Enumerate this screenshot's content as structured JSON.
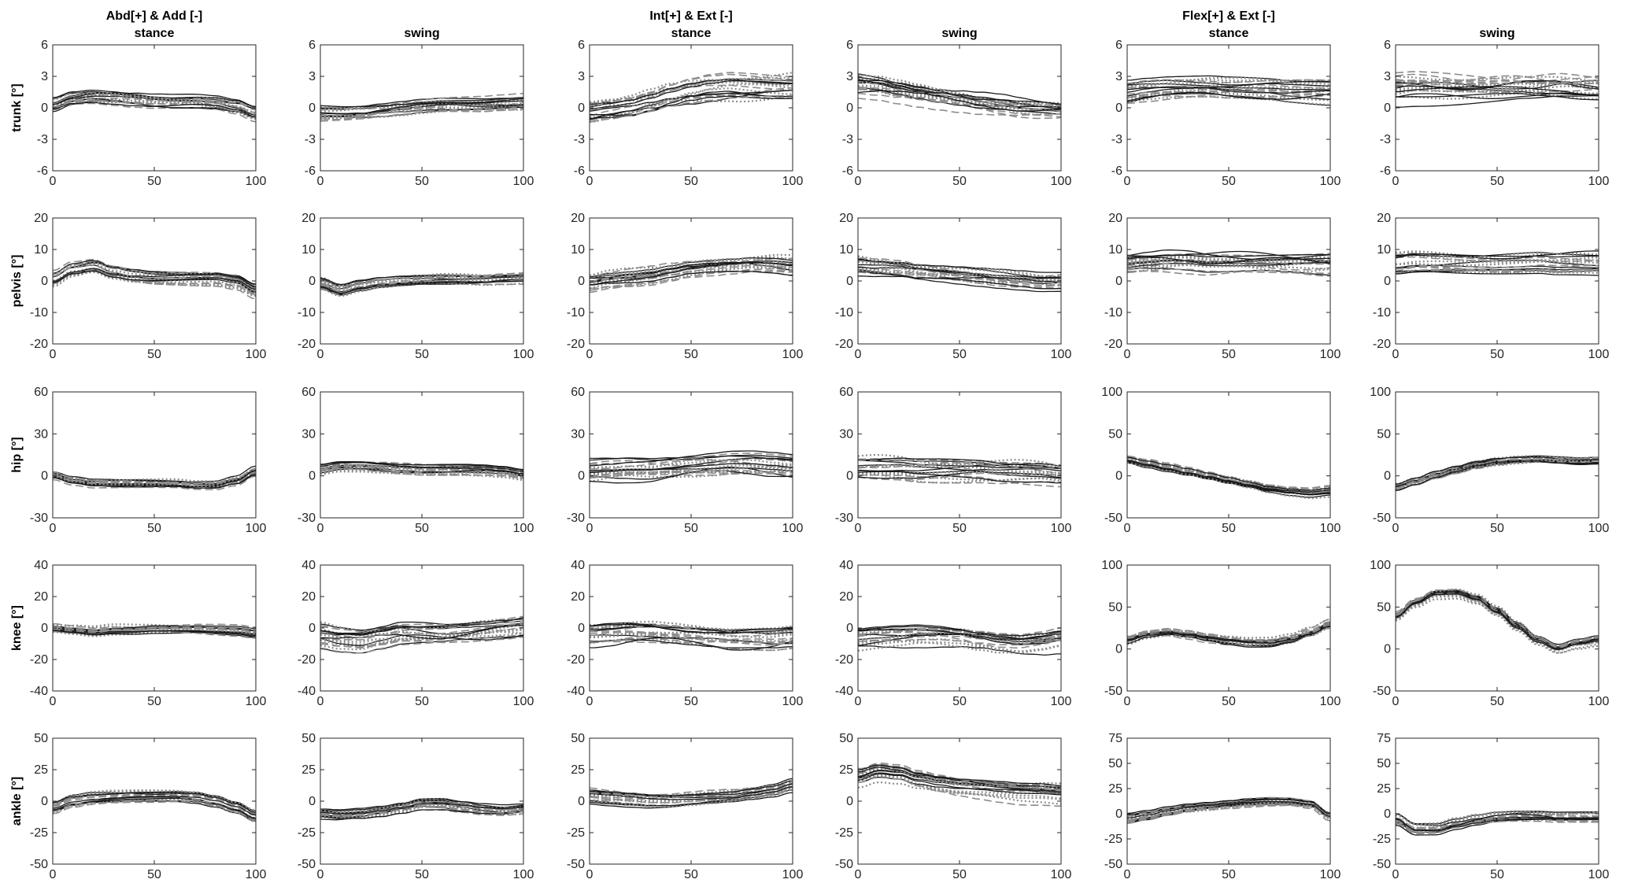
{
  "figure": {
    "column_groups": [
      {
        "title": "Abd[+] & Add [-]",
        "columns": [
          0,
          1
        ]
      },
      {
        "title": "Int[+] & Ext [-]",
        "columns": [
          2,
          3
        ]
      },
      {
        "title": "Flex[+] & Ext [-]",
        "columns": [
          4,
          5
        ]
      }
    ],
    "column_phases": [
      "stance",
      "swing",
      "stance",
      "swing",
      "stance",
      "swing"
    ],
    "row_labels": [
      "trunk [°]",
      "pelvis [°]",
      "hip [°]",
      "knee [°]",
      "ankle [°]"
    ]
  },
  "chart_data": {
    "type": "line",
    "description_of_grid": "5 rows (trunk, pelvis, hip, knee, ankle) x 6 columns (Abd/Add stance, Abd/Add swing, Int/Ext stance, Int/Ext swing, Flex/Ext stance, Flex/Ext swing); each panel overlays many per-subject gait curves (solid black, dashed gray, dotted gray)",
    "x": [
      0,
      10,
      20,
      30,
      40,
      50,
      60,
      70,
      80,
      90,
      100
    ],
    "xlim": [
      0,
      100
    ],
    "xticks": [
      0,
      50,
      100
    ],
    "line_styles": {
      "solid": "#1a1a1a",
      "dashed": "#8c8c8c",
      "dotted": "#8c8c8c"
    },
    "rows": [
      {
        "label": "trunk [°]",
        "panels": [
          {
            "ylim": [
              -6,
              6
            ],
            "yticks": [
              -6,
              -3,
              0,
              3,
              6
            ],
            "mean": [
              0.3,
              0.9,
              1.1,
              1.0,
              0.8,
              0.6,
              0.5,
              0.5,
              0.4,
              0.1,
              -0.5
            ],
            "spread": 0.8
          },
          {
            "ylim": [
              -6,
              6
            ],
            "yticks": [
              -6,
              -3,
              0,
              3,
              6
            ],
            "mean": [
              -0.6,
              -0.6,
              -0.5,
              -0.3,
              -0.1,
              0.1,
              0.2,
              0.2,
              0.2,
              0.3,
              0.4
            ],
            "spread": 0.7
          },
          {
            "ylim": [
              -6,
              6
            ],
            "yticks": [
              -6,
              -3,
              0,
              3,
              6
            ],
            "mean": [
              -0.2,
              0.0,
              0.2,
              0.6,
              1.1,
              1.5,
              1.8,
              2.0,
              2.0,
              2.0,
              2.0
            ],
            "spread": 1.0
          },
          {
            "ylim": [
              -6,
              6
            ],
            "yticks": [
              -6,
              -3,
              0,
              3,
              6
            ],
            "mean": [
              2.0,
              1.9,
              1.6,
              1.3,
              1.0,
              0.7,
              0.4,
              0.2,
              0.0,
              -0.1,
              -0.2
            ],
            "spread": 0.9
          },
          {
            "ylim": [
              -6,
              6
            ],
            "yticks": [
              -6,
              -3,
              0,
              3,
              6
            ],
            "mean": [
              1.6,
              1.8,
              1.9,
              1.9,
              1.9,
              1.8,
              1.8,
              1.8,
              1.7,
              1.7,
              1.7
            ],
            "spread": 1.1
          },
          {
            "ylim": [
              -6,
              6
            ],
            "yticks": [
              -6,
              -3,
              0,
              3,
              6
            ],
            "mean": [
              1.7,
              1.8,
              1.8,
              1.8,
              1.8,
              1.8,
              1.8,
              1.7,
              1.7,
              1.6,
              1.6
            ],
            "spread": 1.1
          }
        ]
      },
      {
        "label": "pelvis [°]",
        "panels": [
          {
            "ylim": [
              -20,
              20
            ],
            "yticks": [
              -20,
              -10,
              0,
              10,
              20
            ],
            "mean": [
              0.5,
              3.5,
              4.5,
              2.5,
              1.5,
              1.0,
              1.0,
              1.0,
              1.0,
              0.0,
              -3.0
            ],
            "spread": 1.8
          },
          {
            "ylim": [
              -20,
              20
            ],
            "yticks": [
              -20,
              -10,
              0,
              10,
              20
            ],
            "mean": [
              -1.0,
              -3.0,
              -1.5,
              -0.5,
              0.0,
              0.3,
              0.5,
              0.5,
              0.5,
              0.8,
              1.0
            ],
            "spread": 1.5
          },
          {
            "ylim": [
              -20,
              20
            ],
            "yticks": [
              -20,
              -10,
              0,
              10,
              20
            ],
            "mean": [
              -0.5,
              0.5,
              1.0,
              1.5,
              2.5,
              3.5,
              4.0,
              4.5,
              5.0,
              5.0,
              4.5
            ],
            "spread": 2.5
          },
          {
            "ylim": [
              -20,
              20
            ],
            "yticks": [
              -20,
              -10,
              0,
              10,
              20
            ],
            "mean": [
              5.0,
              4.5,
              4.0,
              3.0,
              2.5,
              2.0,
              1.5,
              1.0,
              0.5,
              0.0,
              0.0
            ],
            "spread": 2.5
          },
          {
            "ylim": [
              -20,
              20
            ],
            "yticks": [
              -20,
              -10,
              0,
              10,
              20
            ],
            "mean": [
              5.0,
              5.5,
              6.0,
              6.0,
              5.5,
              5.5,
              5.5,
              5.5,
              5.5,
              5.5,
              5.5
            ],
            "spread": 3.0
          },
          {
            "ylim": [
              -20,
              20
            ],
            "yticks": [
              -20,
              -10,
              0,
              10,
              20
            ],
            "mean": [
              5.0,
              5.5,
              5.5,
              5.5,
              5.5,
              5.5,
              5.5,
              5.5,
              5.0,
              5.0,
              5.0
            ],
            "spread": 3.0
          }
        ]
      },
      {
        "label": "hip [°]",
        "panels": [
          {
            "ylim": [
              -30,
              60
            ],
            "yticks": [
              -30,
              0,
              30,
              60
            ],
            "mean": [
              0.0,
              -4.0,
              -6.0,
              -6.0,
              -6.0,
              -6.0,
              -6.0,
              -7.0,
              -7.0,
              -4.0,
              3.0
            ],
            "spread": 3.0
          },
          {
            "ylim": [
              -30,
              60
            ],
            "yticks": [
              -30,
              0,
              30,
              60
            ],
            "mean": [
              5.0,
              7.0,
              7.0,
              6.0,
              5.0,
              4.5,
              4.5,
              4.5,
              4.0,
              3.0,
              1.0
            ],
            "spread": 3.5
          },
          {
            "ylim": [
              -30,
              60
            ],
            "yticks": [
              -30,
              0,
              30,
              60
            ],
            "mean": [
              3.0,
              4.0,
              5.0,
              5.0,
              6.0,
              7.0,
              8.0,
              9.0,
              9.0,
              8.0,
              7.0
            ],
            "spread": 7.0
          },
          {
            "ylim": [
              -30,
              60
            ],
            "yticks": [
              -30,
              0,
              30,
              60
            ],
            "mean": [
              5.0,
              5.0,
              5.0,
              4.0,
              4.0,
              4.0,
              4.0,
              3.0,
              3.0,
              3.0,
              2.0
            ],
            "spread": 7.0
          },
          {
            "ylim": [
              -50,
              100
            ],
            "yticks": [
              -50,
              0,
              50,
              100
            ],
            "mean": [
              20.0,
              15.0,
              10.0,
              5.0,
              0.0,
              -5.0,
              -10.0,
              -15.0,
              -18.0,
              -20.0,
              -18.0
            ],
            "spread": 5.0
          },
          {
            "ylim": [
              -50,
              100
            ],
            "yticks": [
              -50,
              0,
              50,
              100
            ],
            "mean": [
              -15.0,
              -8.0,
              0.0,
              6.0,
              12.0,
              16.0,
              18.0,
              19.0,
              18.0,
              17.0,
              18.0
            ],
            "spread": 5.0
          }
        ]
      },
      {
        "label": "knee [°]",
        "panels": [
          {
            "ylim": [
              -40,
              40
            ],
            "yticks": [
              -40,
              -20,
              0,
              20,
              40
            ],
            "mean": [
              0.0,
              -1.0,
              -2.0,
              -1.0,
              -1.0,
              -0.5,
              -0.5,
              -0.5,
              -1.0,
              -1.5,
              -3.0
            ],
            "spread": 2.5
          },
          {
            "ylim": [
              -40,
              40
            ],
            "yticks": [
              -40,
              -20,
              0,
              20,
              40
            ],
            "mean": [
              -5.0,
              -7.0,
              -8.0,
              -6.0,
              -4.0,
              -4.0,
              -4.0,
              -3.0,
              -2.0,
              -1.0,
              0.0
            ],
            "spread": 6.0
          },
          {
            "ylim": [
              -40,
              40
            ],
            "yticks": [
              -40,
              -20,
              0,
              20,
              40
            ],
            "mean": [
              -5.0,
              -4.0,
              -3.0,
              -3.0,
              -4.0,
              -5.0,
              -6.0,
              -7.0,
              -7.0,
              -7.0,
              -6.0
            ],
            "spread": 6.0
          },
          {
            "ylim": [
              -40,
              40
            ],
            "yticks": [
              -40,
              -20,
              0,
              20,
              40
            ],
            "mean": [
              -8.0,
              -7.0,
              -6.0,
              -5.0,
              -5.0,
              -6.0,
              -8.0,
              -10.0,
              -11.0,
              -10.0,
              -8.0
            ],
            "spread": 6.0
          },
          {
            "ylim": [
              -50,
              100
            ],
            "yticks": [
              -50,
              0,
              50,
              100
            ],
            "mean": [
              12.0,
              18.0,
              20.0,
              17.0,
              13.0,
              10.0,
              8.0,
              8.0,
              12.0,
              20.0,
              30.0
            ],
            "spread": 5.0
          },
          {
            "ylim": [
              -50,
              100
            ],
            "yticks": [
              -50,
              0,
              50,
              100
            ],
            "mean": [
              38.0,
              55.0,
              66.0,
              67.0,
              60.0,
              45.0,
              27.0,
              10.0,
              0.0,
              6.0,
              10.0
            ],
            "spread": 5.0
          }
        ]
      },
      {
        "label": "ankle [°]",
        "panels": [
          {
            "ylim": [
              -50,
              50
            ],
            "yticks": [
              -50,
              -25,
              0,
              25,
              50
            ],
            "mean": [
              -5.0,
              0.0,
              2.0,
              3.0,
              4.0,
              4.0,
              4.0,
              3.0,
              0.0,
              -5.0,
              -12.0
            ],
            "spread": 4.0
          },
          {
            "ylim": [
              -50,
              50
            ],
            "yticks": [
              -50,
              -25,
              0,
              25,
              50
            ],
            "mean": [
              -10.0,
              -11.0,
              -10.0,
              -8.0,
              -5.0,
              -2.0,
              -2.0,
              -4.0,
              -6.0,
              -7.0,
              -6.0
            ],
            "spread": 4.0
          },
          {
            "ylim": [
              -50,
              50
            ],
            "yticks": [
              -50,
              -25,
              0,
              25,
              50
            ],
            "mean": [
              4.0,
              3.0,
              2.0,
              1.0,
              1.0,
              2.0,
              3.0,
              4.0,
              6.0,
              8.0,
              12.0
            ],
            "spread": 5.0
          },
          {
            "ylim": [
              -50,
              50
            ],
            "yticks": [
              -50,
              -25,
              0,
              25,
              50
            ],
            "mean": [
              18.0,
              22.0,
              20.0,
              15.0,
              12.0,
              10.0,
              9.0,
              8.0,
              7.0,
              7.0,
              6.0
            ],
            "spread": 7.0
          },
          {
            "ylim": [
              -50,
              75
            ],
            "yticks": [
              -50,
              -25,
              0,
              25,
              50,
              75
            ],
            "mean": [
              -5.0,
              -2.0,
              2.0,
              5.0,
              7.0,
              9.0,
              11.0,
              12.0,
              12.0,
              10.0,
              -2.0
            ],
            "spread": 4.0
          },
          {
            "ylim": [
              -50,
              75
            ],
            "yticks": [
              -50,
              -25,
              0,
              25,
              50,
              75
            ],
            "mean": [
              -5.0,
              -15.0,
              -15.0,
              -10.0,
              -6.0,
              -3.0,
              -2.0,
              -2.0,
              -3.0,
              -3.0,
              -3.0
            ],
            "spread": 5.0
          }
        ]
      }
    ]
  }
}
